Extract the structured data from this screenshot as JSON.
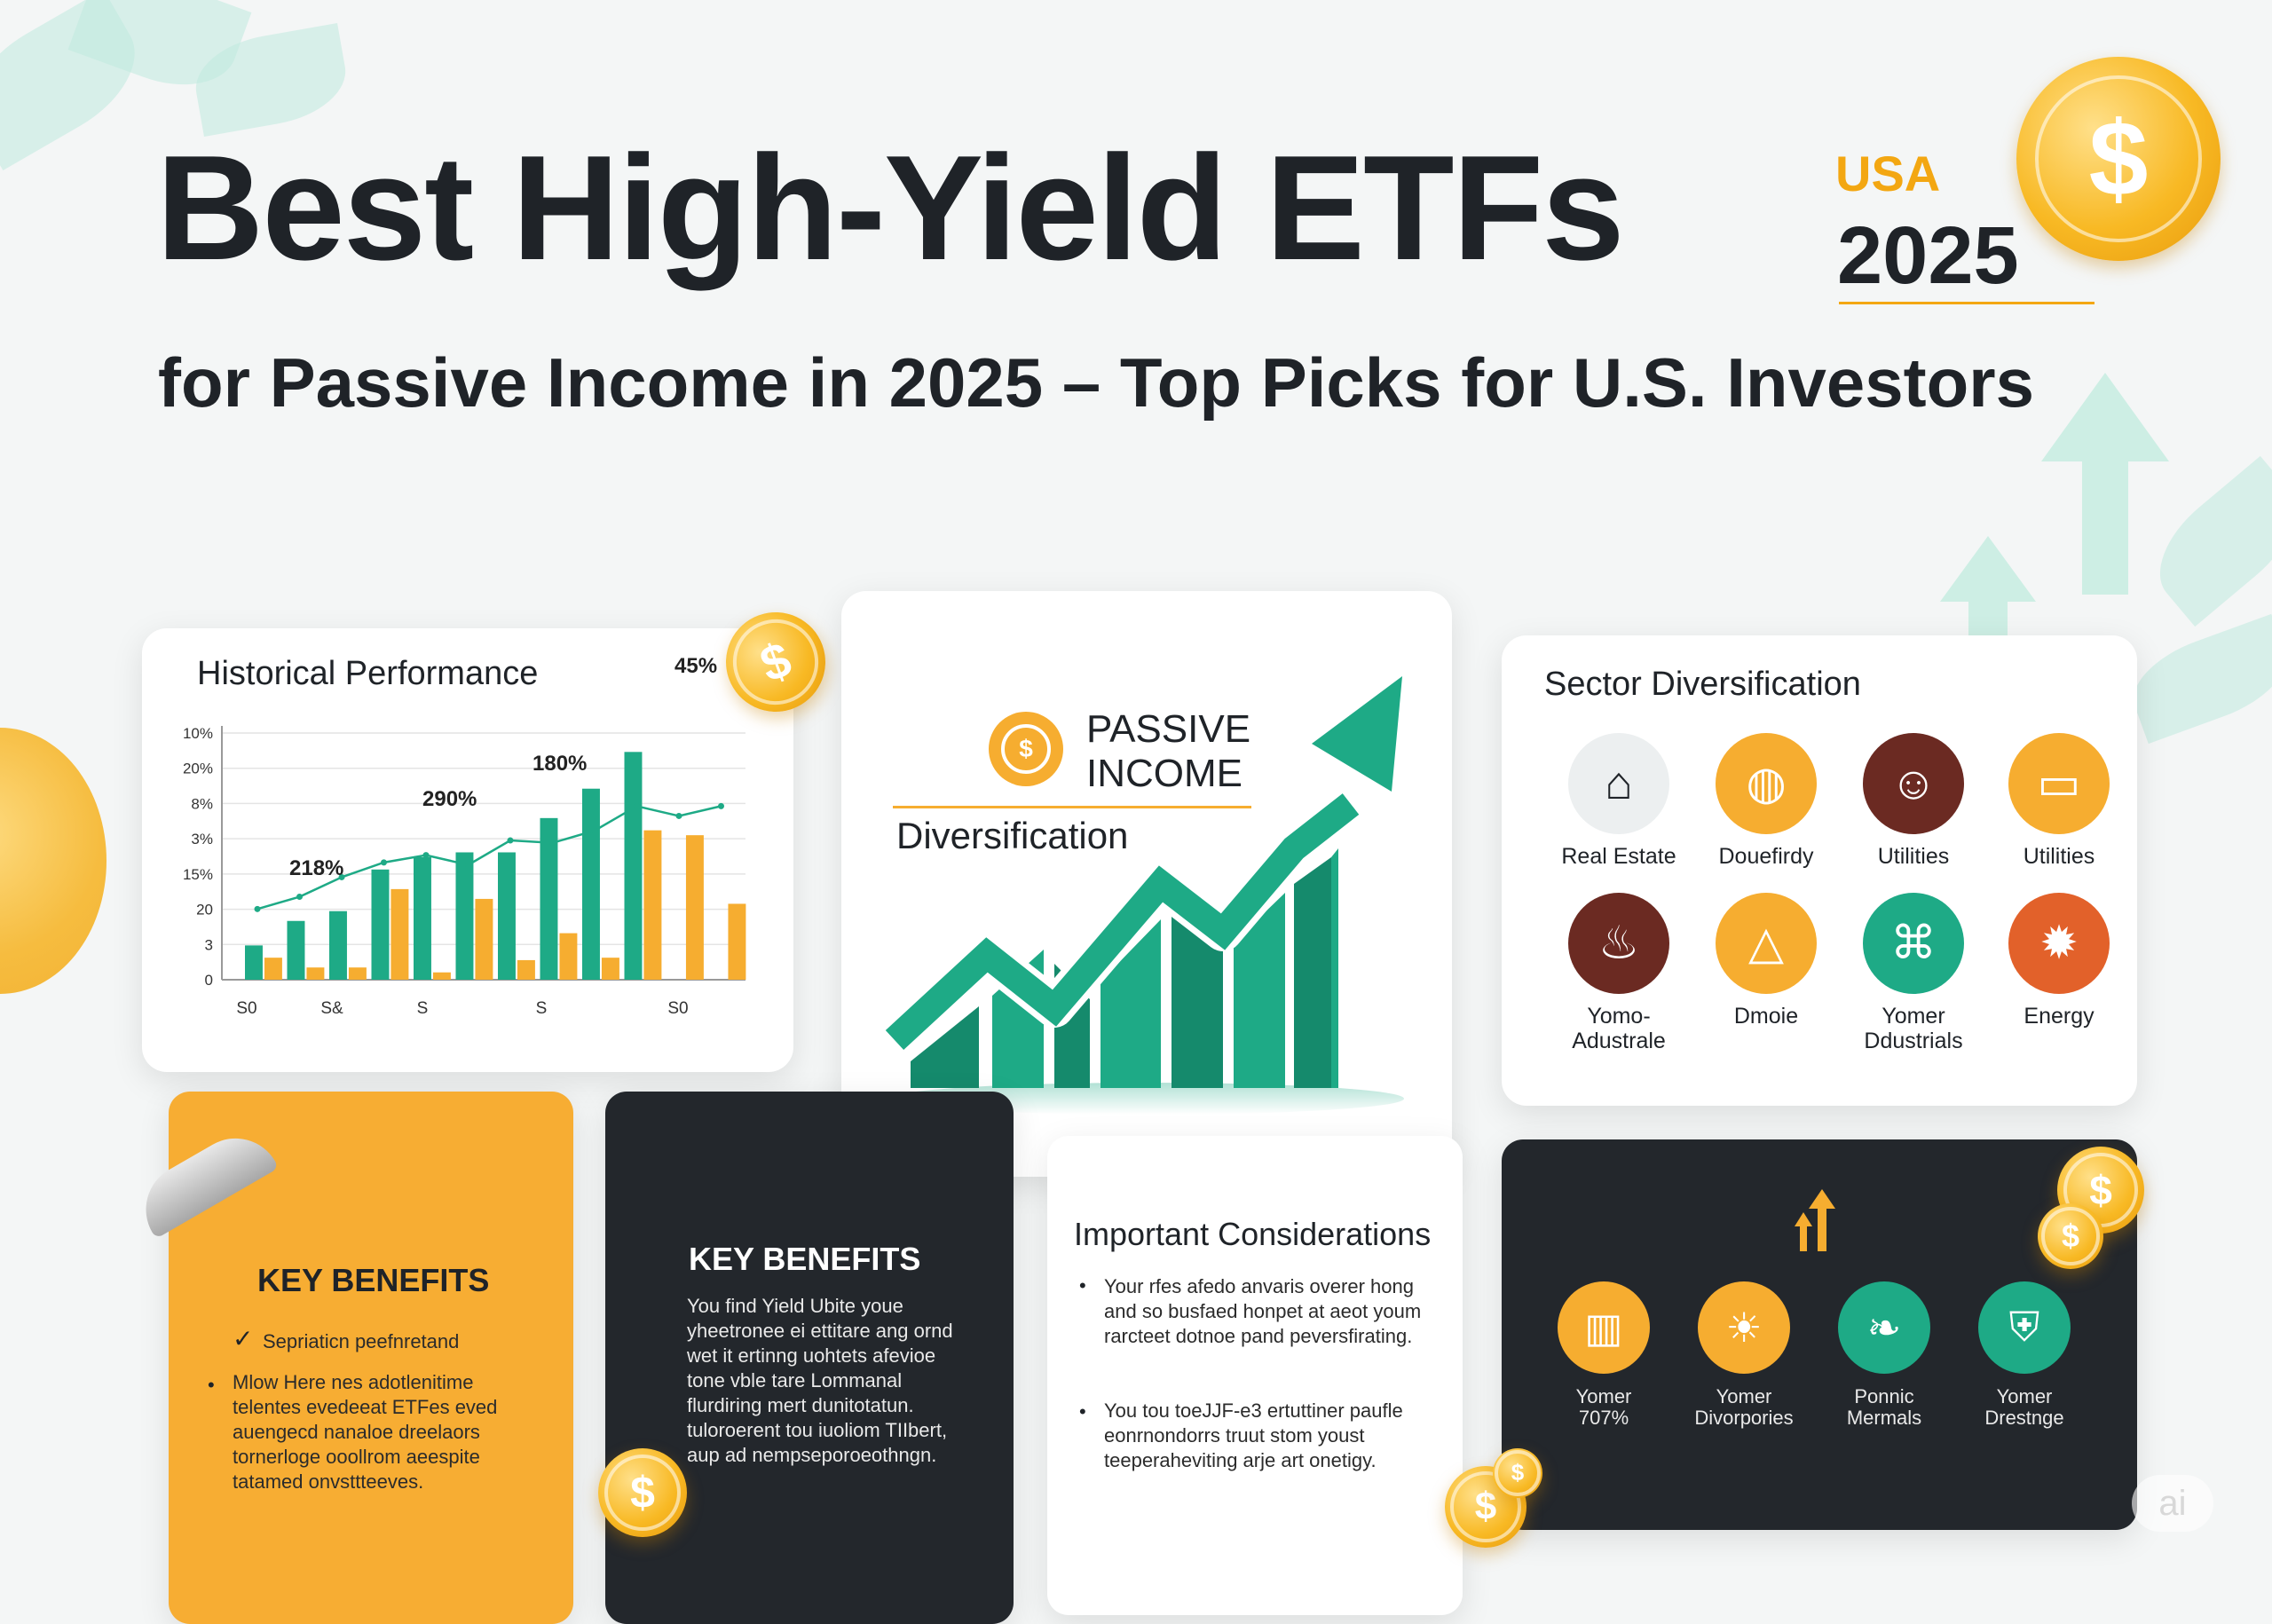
{
  "header": {
    "title": "Best High-Yield ETFs",
    "subtitle": "for Passive Income in 2025 – Top Picks for U.S. Investors",
    "badge_country": "USA",
    "badge_year": "2025"
  },
  "historical": {
    "title": "Historical Performance",
    "annotations": [
      "45%",
      "180%",
      "290%",
      "218%"
    ],
    "y_ticks": [
      "10%",
      "20%",
      "8%",
      "3%",
      "15%",
      "20",
      "3",
      "0"
    ],
    "x_ticks": [
      "S0",
      "S&",
      "S",
      "S",
      "S0"
    ]
  },
  "chart_data": {
    "type": "bar",
    "title": "Historical Performance",
    "series": [
      {
        "values": [
          14,
          24,
          28,
          45,
          50,
          52,
          52,
          66,
          78,
          93
        ]
      },
      {
        "values": [
          9,
          5,
          5,
          37,
          3,
          33,
          8,
          19,
          9,
          61,
          59,
          31
        ]
      }
    ],
    "line": [
      18,
      23,
      31,
      37,
      40,
      36,
      46,
      45,
      50,
      60,
      56,
      60
    ],
    "annotations": [
      "45%",
      "180%",
      "290%",
      "218%"
    ],
    "colors": {
      "teal": "#1eaa86",
      "orange": "#f6ad30",
      "line": "#1eaa86"
    }
  },
  "center": {
    "passive_line1": "PASSIVE",
    "passive_line2": "INCOME",
    "diversification": "Diversification"
  },
  "sector": {
    "title": "Sector Diversification",
    "items": [
      {
        "label": "Real Estate",
        "icon": "house-icon",
        "color": "#eceff0"
      },
      {
        "label": "Douefirdy",
        "icon": "globe-icon",
        "color": "#f6ad30"
      },
      {
        "label": "Utilities",
        "icon": "people-icon",
        "color": "#6b2a22"
      },
      {
        "label": "Utilities",
        "icon": "monitor-icon",
        "color": "#f6ad30"
      },
      {
        "label": "Yomo-\nAdustrale",
        "icon": "flame-icon",
        "color": "#6b2a22"
      },
      {
        "label": "Dmoie",
        "icon": "triangle-icon",
        "color": "#f6ad30"
      },
      {
        "label": "Yomer\nDdustrials",
        "icon": "factory-icon",
        "color": "#1eaa86"
      },
      {
        "label": "Energy",
        "icon": "sun-icon",
        "color": "#e2612a"
      }
    ]
  },
  "orange_card": {
    "heading": "KEY BENEFITS",
    "check_item": "Sepriaticn peefnretand",
    "bullet_text": "Mlow Here nes adotlenitime telentes evedeeat ETFes eved auengecd nanaloe dreelaors tornerloge ooollrom aeespite tatamed onvsttteeves."
  },
  "dark_card": {
    "heading": "KEY BENEFITS",
    "text": "You find Yield Ubite youe yheetronee ei ettitare ang ornd wet it ertinng uohtets afevioe tone vble tare Lommanal flurdiring mert dunitotatun. tuloroerent tou iuoliom TIIbert, aup ad nempseporoeothngn."
  },
  "considerations": {
    "heading": "Important Considerations",
    "bullets": [
      "Your rfes afedo anvaris overer hong and so busfaed honpet at aeot youm rarcteet dotnoe pand peversfirating.",
      "You tou toeJJF-e3 ertuttiner paufle eonrnondorrs truut stom youst teeperaheviting arje art onetigy."
    ]
  },
  "benefits_dark": {
    "items": [
      {
        "label": "Yomer\n707%",
        "icon": "bar-chart-icon",
        "color": "#f6ad30"
      },
      {
        "label": "Yomer\nDivorpories",
        "icon": "sunrise-icon",
        "color": "#f6ad30"
      },
      {
        "label": "Ponnic\nMermals",
        "icon": "leaf-icon",
        "color": "#1eaa86"
      },
      {
        "label": "Yomer\nDrestnge",
        "icon": "shield-icon",
        "color": "#1eaa86"
      }
    ]
  },
  "watermark": "ai"
}
